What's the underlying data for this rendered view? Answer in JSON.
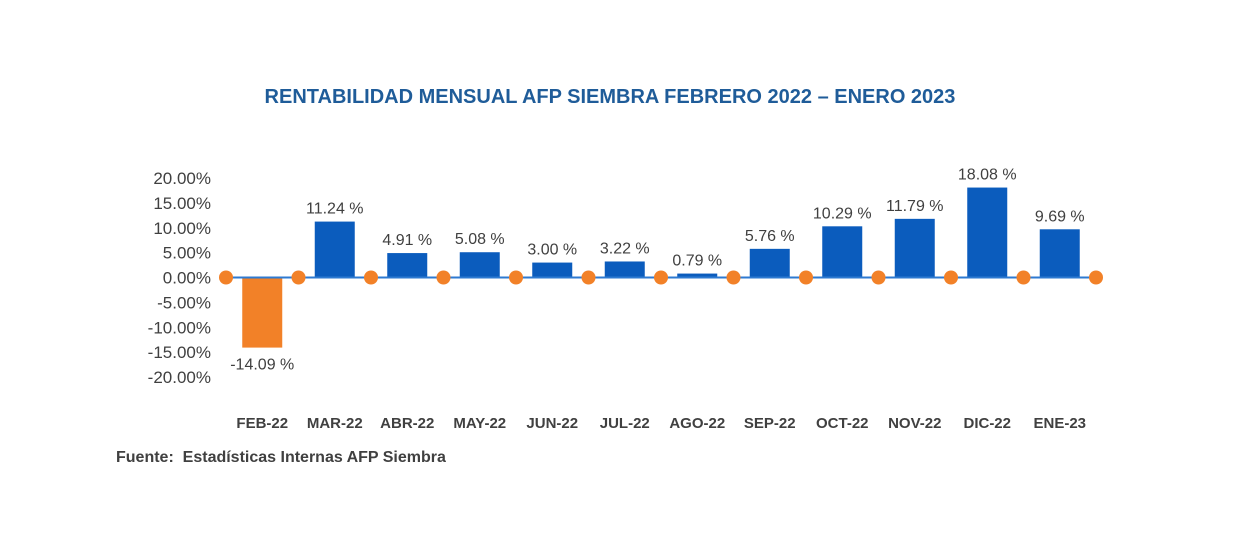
{
  "chart_data": {
    "type": "bar",
    "title": "RENTABILIDAD MENSUAL AFP SIEMBRA FEBRERO 2022 – ENERO 2023",
    "categories": [
      "FEB-22",
      "MAR-22",
      "ABR-22",
      "MAY-22",
      "JUN-22",
      "JUL-22",
      "AGO-22",
      "SEP-22",
      "OCT-22",
      "NOV-22",
      "DIC-22",
      "ENE-23"
    ],
    "values": [
      -14.09,
      11.24,
      4.91,
      5.08,
      3.0,
      3.22,
      0.79,
      5.76,
      10.29,
      11.79,
      18.08,
      9.69
    ],
    "data_labels": [
      "-14.09 %",
      "11.24 %",
      "4.91 %",
      "5.08 %",
      "3.00 %",
      "3.22 %",
      "0.79 %",
      "5.76 %",
      "10.29 %",
      "11.79 %",
      "18.08 %",
      "9.69 %"
    ],
    "ylim": [
      -20,
      20
    ],
    "yticks": [
      20,
      15,
      10,
      5,
      0,
      -5,
      -10,
      -15,
      -20
    ],
    "ytick_labels": [
      "20.00%",
      "15.00%",
      "10.00%",
      "5.00%",
      "0.00%",
      "-5.00%",
      "-10.00%",
      "-15.00%",
      "-20.00%"
    ],
    "xlabel": "",
    "ylabel": "",
    "grid": false,
    "legend": "none",
    "colors": {
      "positive_bar": "#0b5cbd",
      "negative_bar": "#f28128",
      "zero_line": "#2e7ad1",
      "zero_markers": "#f28128",
      "title": "#1f5c99",
      "text": "#404040"
    },
    "source": "Fuente:  Estadísticas Internas AFP Siembra"
  }
}
